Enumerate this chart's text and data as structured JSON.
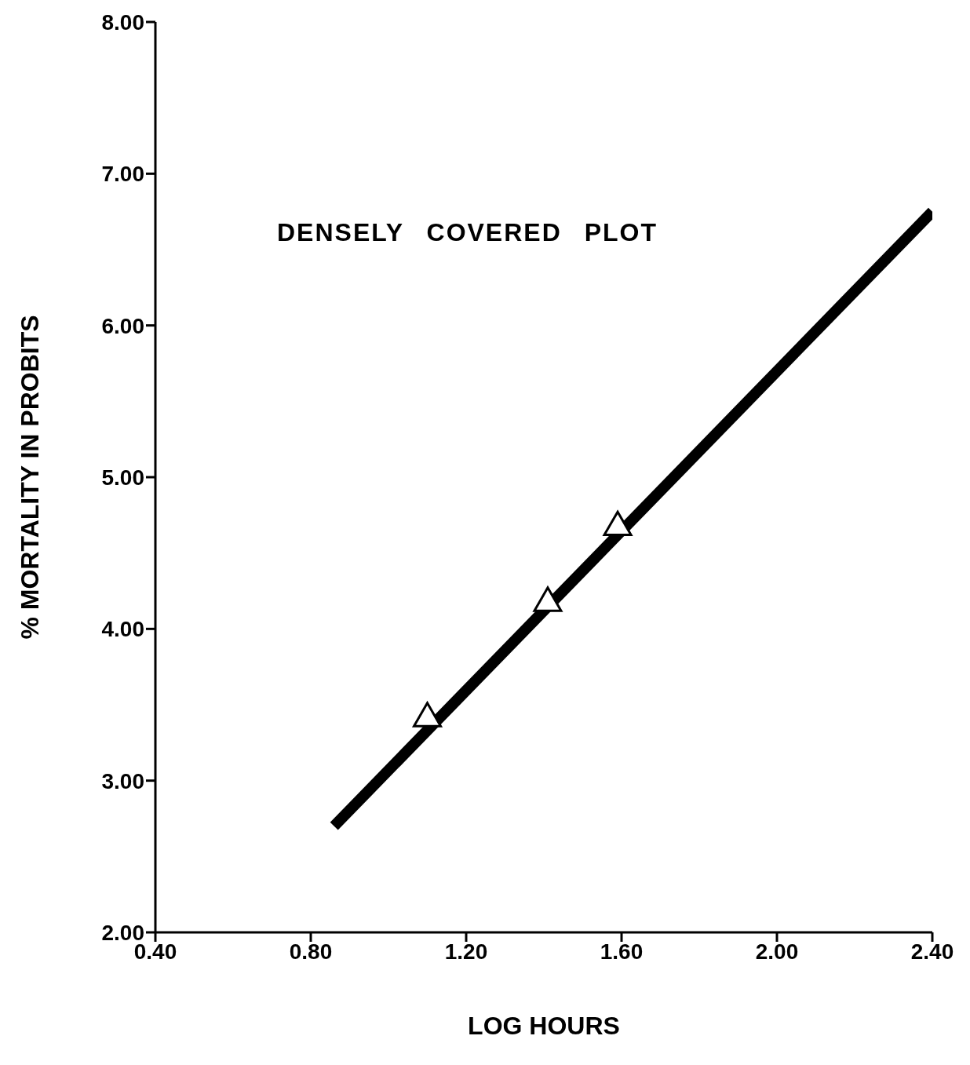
{
  "chart_data": {
    "type": "line",
    "xlabel": "LOG HOURS",
    "ylabel": "% MORTALITY IN PROBITS",
    "annotations": [
      "DENSELY COVERED PLOT"
    ],
    "xlim": [
      0.4,
      2.4
    ],
    "ylim": [
      2,
      8
    ],
    "xticks": [
      {
        "value": 0.4,
        "label": "0.40"
      },
      {
        "value": 0.8,
        "label": "0.80"
      },
      {
        "value": 1.2,
        "label": "1.20"
      },
      {
        "value": 1.6,
        "label": "1.60"
      },
      {
        "value": 2.0,
        "label": "2.00"
      },
      {
        "value": 2.4,
        "label": "2.40"
      }
    ],
    "yticks": [
      {
        "value": 2,
        "label": "2.00"
      },
      {
        "value": 3,
        "label": "3.00"
      },
      {
        "value": 4,
        "label": "4.00"
      },
      {
        "value": 5,
        "label": "5.00"
      },
      {
        "value": 6,
        "label": "6.00"
      },
      {
        "value": 7,
        "label": "7.00"
      },
      {
        "value": 8,
        "label": "8.00"
      }
    ],
    "grid": false,
    "legend": false,
    "series": [
      {
        "color": "#000000",
        "x": [
          0.86,
          2.4
        ],
        "values": [
          2.7,
          6.75
        ],
        "marker": "none"
      },
      {
        "type": "scatter",
        "color": "#000000",
        "x": [
          1.1,
          1.41,
          1.59
        ],
        "values": [
          3.41,
          4.17,
          4.67
        ],
        "marker": "triangle"
      }
    ]
  }
}
